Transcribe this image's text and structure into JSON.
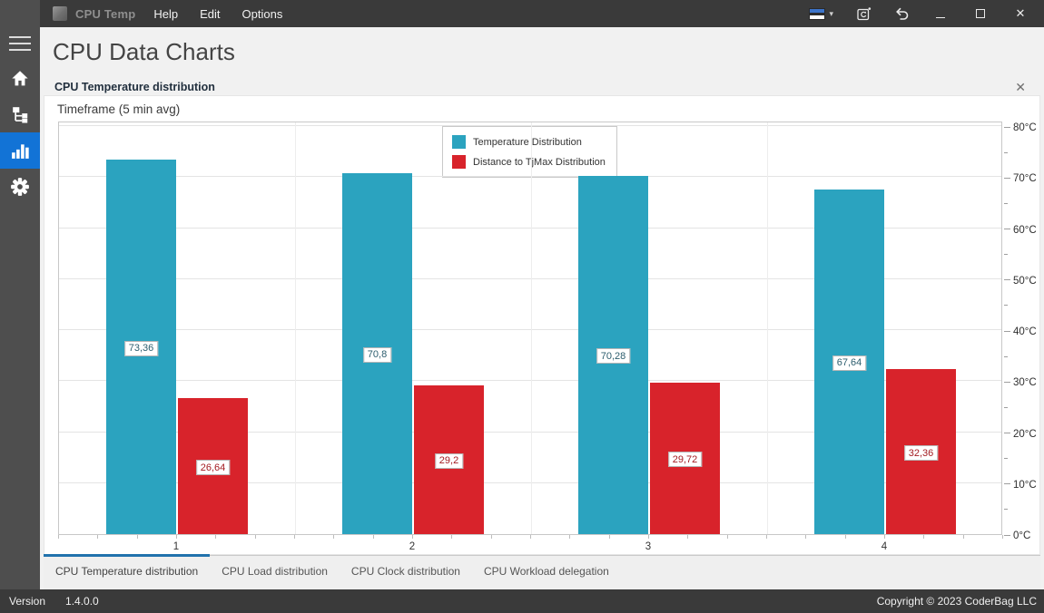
{
  "titlebar": {
    "app_name": "CPU Temp",
    "menus": [
      "Help",
      "Edit",
      "Options"
    ],
    "icons": [
      "language-flag",
      "refresh-window",
      "undo",
      "minimize",
      "maximize",
      "close"
    ]
  },
  "sidebar": {
    "items": [
      "menu",
      "home",
      "sensor-tree",
      "charts",
      "settings"
    ],
    "active_item": "charts",
    "active_color": "#1273d6"
  },
  "page": {
    "title": "CPU Data Charts"
  },
  "section": {
    "title": "CPU Temperature distribution",
    "close_glyph": "✕"
  },
  "chart_data": {
    "type": "bar",
    "title": "Timeframe (5 min avg)",
    "categories": [
      "1",
      "2",
      "3",
      "4"
    ],
    "series": [
      {
        "name": "Temperature Distribution",
        "color": "#2BA3BF",
        "label_color": "#2d5e6e",
        "values": [
          73.36,
          70.8,
          70.28,
          67.64
        ],
        "labels": [
          "73,36",
          "70,8",
          "70,28",
          "67,64"
        ]
      },
      {
        "name": "Distance to TjMax Distribution",
        "color": "#D8232B",
        "label_color": "#a31c22",
        "values": [
          26.64,
          29.2,
          29.72,
          32.36
        ],
        "labels": [
          "26,64",
          "29,2",
          "29,72",
          "32,36"
        ]
      }
    ],
    "ylim": [
      0,
      80
    ],
    "y_tick_step": 10,
    "y_minor_step": 5,
    "y_unit": "°C",
    "y_axis_side": "right",
    "grid": true,
    "legend_position": "top-center"
  },
  "tabs": [
    {
      "label": "CPU Temperature distribution",
      "active": true
    },
    {
      "label": "CPU Load distribution",
      "active": false
    },
    {
      "label": "CPU Clock distribution",
      "active": false
    },
    {
      "label": "CPU Workload delegation",
      "active": false
    }
  ],
  "statusbar": {
    "version_label": "Version",
    "version": "1.4.0.0",
    "copyright": "Copyright © 2023 CoderBag LLC"
  }
}
